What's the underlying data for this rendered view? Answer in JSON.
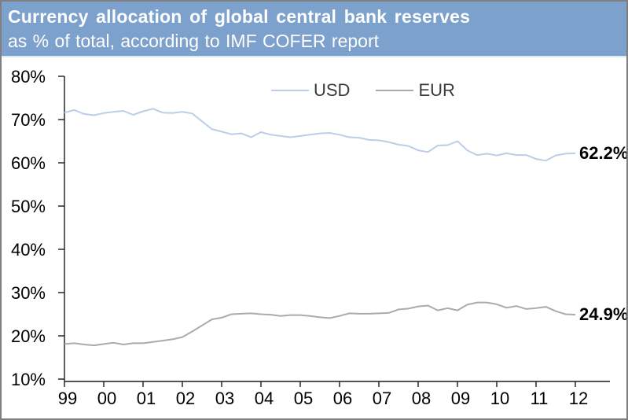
{
  "header": {
    "title": "Currency allocation of global central bank reserves",
    "subtitle": "as % of total, according to IMF COFER report",
    "background_color": "#7CA1CD",
    "text_color": "#FFFFFF"
  },
  "chart_data": {
    "type": "line",
    "title": "Currency allocation of global central bank reserves",
    "subtitle": "as % of total, according to IMF COFER report",
    "x_unit": "quarterly",
    "x_start": "1999Q1",
    "x_end": "2012Q1",
    "x_tick_labels": [
      "99",
      "00",
      "01",
      "02",
      "03",
      "04",
      "05",
      "06",
      "07",
      "08",
      "09",
      "10",
      "11",
      "12"
    ],
    "y_ticks": [
      80,
      70,
      60,
      50,
      40,
      30,
      20,
      10
    ],
    "y_tick_labels": [
      "80%",
      "70%",
      "60%",
      "50%",
      "40%",
      "30%",
      "20%",
      "10%"
    ],
    "ylim": [
      10,
      80
    ],
    "grid": false,
    "legend_position": "top-center",
    "series": [
      {
        "name": "USD",
        "color": "#BCCDE8",
        "end_label": "62.2%",
        "values": [
          71.6,
          72.2,
          71.3,
          71.0,
          71.5,
          71.8,
          72.0,
          71.1,
          71.9,
          72.5,
          71.6,
          71.5,
          71.8,
          71.4,
          69.6,
          67.8,
          67.2,
          66.6,
          66.8,
          65.9,
          67.1,
          66.5,
          66.2,
          65.9,
          66.2,
          66.5,
          66.8,
          66.9,
          66.5,
          65.9,
          65.8,
          65.3,
          65.2,
          64.8,
          64.2,
          63.9,
          62.9,
          62.5,
          64.0,
          64.1,
          65.0,
          62.9,
          61.8,
          62.1,
          61.7,
          62.2,
          61.8,
          61.8,
          60.9,
          60.5,
          61.7,
          62.1,
          62.2
        ]
      },
      {
        "name": "EUR",
        "color": "#ABABAB",
        "end_label": "24.9%",
        "values": [
          18.1,
          18.3,
          18.0,
          17.8,
          18.1,
          18.4,
          18.0,
          18.3,
          18.3,
          18.6,
          18.9,
          19.2,
          19.7,
          21.0,
          22.4,
          23.8,
          24.2,
          25.0,
          25.1,
          25.2,
          25.0,
          24.9,
          24.6,
          24.8,
          24.8,
          24.6,
          24.3,
          24.1,
          24.6,
          25.2,
          25.1,
          25.1,
          25.2,
          25.3,
          26.1,
          26.3,
          26.8,
          27.0,
          25.9,
          26.4,
          25.9,
          27.2,
          27.7,
          27.7,
          27.3,
          26.5,
          26.9,
          26.2,
          26.4,
          26.7,
          25.7,
          25.0,
          24.9
        ]
      }
    ]
  },
  "colors": {
    "axis": "#1a1a1a",
    "tick_label": "#000000",
    "border": "#7f7f7f"
  }
}
